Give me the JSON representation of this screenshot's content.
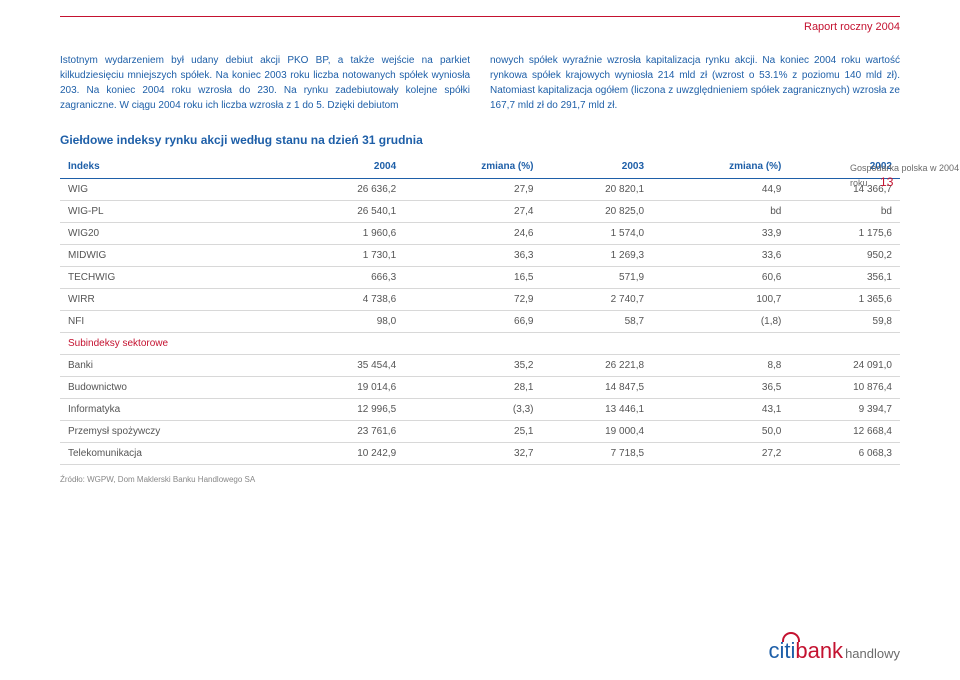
{
  "header": {
    "title": "Raport roczny 2004"
  },
  "paragraphs": {
    "left": "Istotnym wydarzeniem był udany debiut akcji PKO BP, a także wejście na parkiet kilkudziesięciu mniejszych spółek. Na koniec 2003 roku liczba notowanych spółek wyniosła 203. Na koniec 2004 roku wzrosła do 230. Na rynku zadebiutowały kolejne spółki zagraniczne. W ciągu 2004 roku ich liczba wzrosła z 1 do 5. Dzięki debiutom",
    "right": "nowych spółek wyraźnie wzrosła kapitalizacja rynku akcji. Na koniec 2004 roku wartość rynkowa spółek krajowych wyniosła 214 mld zł (wzrost o 53.1% z poziomu 140 mld zł). Natomiast kapitalizacja ogółem (liczona z uwzględnieniem spółek zagranicznych) wzrosła ze 167,7 mld zł do 291,7 mld zł."
  },
  "sidebar": {
    "text": "Gospodarka polska w 2004 roku",
    "page": "13"
  },
  "table": {
    "title": "Giełdowe indeksy rynku akcji według stanu na dzień 31 grudnia",
    "columns": [
      "Indeks",
      "2004",
      "zmiana (%)",
      "2003",
      "zmiana (%)",
      "2002"
    ],
    "rows": [
      {
        "cells": [
          "WIG",
          "26 636,2",
          "27,9",
          "20 820,1",
          "44,9",
          "14 366,7"
        ]
      },
      {
        "cells": [
          "WIG-PL",
          "26 540,1",
          "27,4",
          "20 825,0",
          "bd",
          "bd"
        ]
      },
      {
        "cells": [
          "WIG20",
          "1 960,6",
          "24,6",
          "1 574,0",
          "33,9",
          "1 175,6"
        ]
      },
      {
        "cells": [
          "MIDWIG",
          "1 730,1",
          "36,3",
          "1 269,3",
          "33,6",
          "950,2"
        ]
      },
      {
        "cells": [
          "TECHWIG",
          "666,3",
          "16,5",
          "571,9",
          "60,6",
          "356,1"
        ]
      },
      {
        "cells": [
          "WIRR",
          "4 738,6",
          "72,9",
          "2 740,7",
          "100,7",
          "1 365,6"
        ]
      },
      {
        "cells": [
          "NFI",
          "98,0",
          "66,9",
          "58,7",
          "(1,8)",
          "59,8"
        ]
      },
      {
        "sector": true,
        "cells": [
          "Subindeksy sektorowe",
          "",
          "",
          "",
          "",
          ""
        ]
      },
      {
        "cells": [
          "Banki",
          "35 454,4",
          "35,2",
          "26 221,8",
          "8,8",
          "24 091,0"
        ]
      },
      {
        "cells": [
          "Budownictwo",
          "19 014,6",
          "28,1",
          "14 847,5",
          "36,5",
          "10 876,4"
        ]
      },
      {
        "cells": [
          "Informatyka",
          "12 996,5",
          "(3,3)",
          "13 446,1",
          "43,1",
          "9 394,7"
        ]
      },
      {
        "cells": [
          "Przemysł spożywczy",
          "23 761,6",
          "25,1",
          "19 000,4",
          "50,0",
          "12 668,4"
        ]
      },
      {
        "cells": [
          "Telekomunikacja",
          "10 242,9",
          "32,7",
          "7 718,5",
          "27,2",
          "6 068,3"
        ]
      }
    ],
    "source": "Źródło: WGPW, Dom Maklerski Banku Handlowego SA"
  },
  "logo": {
    "part1": "citi",
    "part2": "bank",
    "part3": "handlowy"
  }
}
